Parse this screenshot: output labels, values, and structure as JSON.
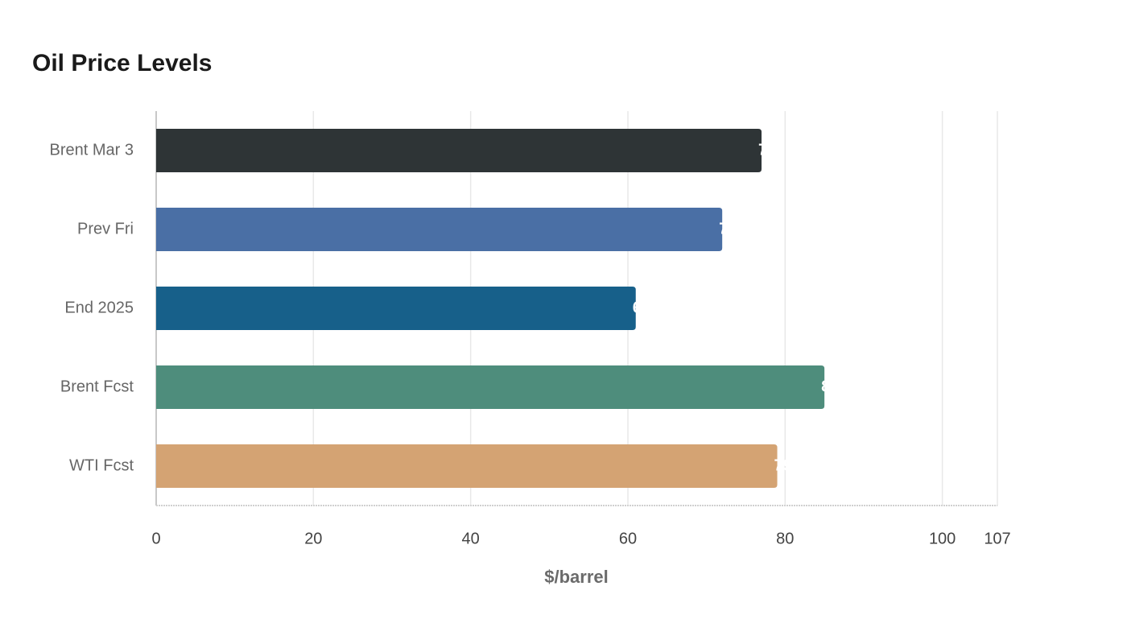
{
  "chart_data": {
    "type": "barh",
    "title": "Oil Price Levels",
    "categories": [
      "Brent Mar 3",
      "Prev Fri",
      "End 2025",
      "Brent Fcst",
      "WTI Fcst"
    ],
    "values": [
      77,
      72,
      61,
      85,
      79
    ],
    "colors": [
      "#2e3436",
      "#4a6fa5",
      "#17608a",
      "#4e8d7c",
      "#d4a373"
    ],
    "xlabel": "$/barrel",
    "xlim": [
      0,
      107
    ],
    "xticks": [
      0,
      20,
      40,
      60,
      80,
      100,
      107
    ],
    "grid": true
  }
}
